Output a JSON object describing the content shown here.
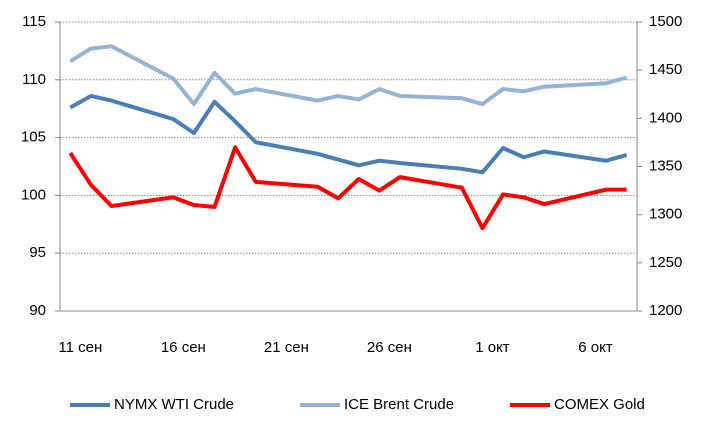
{
  "chart_data": {
    "type": "line",
    "categories": [
      "11 сен",
      null,
      null,
      null,
      null,
      "16 сен",
      null,
      null,
      null,
      null,
      "21 сен",
      null,
      null,
      null,
      null,
      "26 сен",
      null,
      null,
      null,
      null,
      "1 окт",
      null,
      null,
      null,
      null,
      "6 окт",
      null,
      null
    ],
    "series": [
      {
        "name": "NYMX WTI Crude",
        "color": "#4a7ebb",
        "values": [
          107.6,
          108.6,
          108.2,
          null,
          null,
          106.6,
          105.4,
          108.1,
          106.4,
          104.6,
          null,
          null,
          103.6,
          103.1,
          102.6,
          103.0,
          102.8,
          null,
          null,
          102.3,
          102.0,
          104.1,
          103.3,
          103.8,
          null,
          null,
          103.0,
          103.5
        ]
      },
      {
        "name": "ICE Brent Crude",
        "color": "#95b3d7",
        "values": [
          111.6,
          112.7,
          112.9,
          null,
          null,
          110.1,
          107.9,
          110.6,
          108.8,
          109.2,
          null,
          null,
          108.2,
          108.6,
          108.3,
          109.2,
          108.6,
          null,
          null,
          108.4,
          107.9,
          109.2,
          109.0,
          109.4,
          null,
          null,
          109.7,
          110.2
        ]
      },
      {
        "name": "COMEX Gold",
        "color": "#ff0000",
        "axis": "y2",
        "values": [
          1364,
          1331,
          1309,
          null,
          null,
          1318,
          1310,
          1308,
          1370,
          1334,
          null,
          null,
          1329,
          1317,
          1337,
          1325,
          1339,
          null,
          null,
          1328,
          1286,
          1321,
          1318,
          1311,
          null,
          null,
          1326,
          1326
        ]
      }
    ],
    "ylim": [
      90,
      115
    ],
    "yticks": [
      90,
      95,
      100,
      105,
      110,
      115
    ],
    "y2lim": [
      1200,
      1500
    ],
    "y2ticks": [
      1200,
      1250,
      1300,
      1350,
      1400,
      1450,
      1500
    ],
    "grid": true,
    "legend": "bottom",
    "connect_gaps": true
  }
}
